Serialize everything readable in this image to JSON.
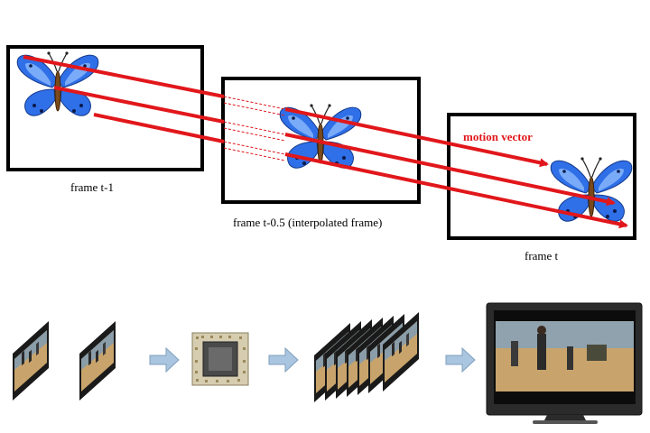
{
  "frames": {
    "previous": {
      "caption": "frame t-1"
    },
    "interpolated": {
      "caption": "frame t-0.5 (interpolated frame)"
    },
    "current": {
      "caption": "frame t"
    }
  },
  "motion_label": "motion vector",
  "icons": {
    "butterfly": "butterfly-icon",
    "video_frame": "video-frame-thumbnail-icon",
    "chip": "processor-chip-icon",
    "arrow": "flow-arrow-icon",
    "tv": "television-icon"
  },
  "colors": {
    "vector": "#e1171b",
    "butterfly_wing": "#2f6fe8",
    "butterfly_wing_light": "#9ac4ff",
    "flow_arrow": "#a9c5df",
    "sand": "#c8a46c"
  }
}
